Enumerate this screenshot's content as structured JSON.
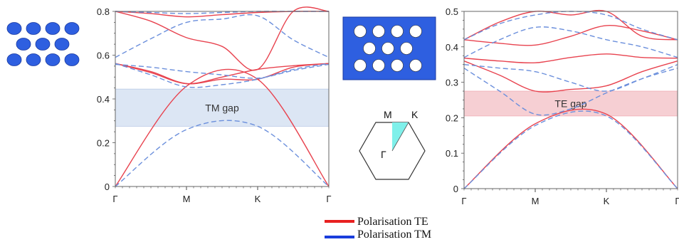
{
  "chart_data": [
    {
      "type": "line",
      "name": "TM gap band diagram",
      "x_ticks": [
        "Γ",
        "M",
        "K",
        "Γ"
      ],
      "y_ticks": [
        "0",
        "0.2",
        "0.4",
        "0.6",
        "0.8"
      ],
      "ylim": [
        0,
        0.8
      ],
      "grid": false,
      "gap": {
        "label": "TM gap",
        "from": 0.275,
        "to": 0.445,
        "color": "#dce6f4"
      },
      "x_knots": [
        0,
        1,
        2,
        3
      ],
      "series": [
        {
          "pol": "TE",
          "style": "solid",
          "color": "#e8434f",
          "points": [
            [
              0,
              0
            ],
            [
              1,
              0.458
            ],
            [
              2,
              0.49
            ],
            [
              3,
              0
            ]
          ]
        },
        {
          "pol": "TE",
          "style": "solid",
          "color": "#e8434f",
          "points": [
            [
              0,
              0.562
            ],
            [
              0.5,
              0.525
            ],
            [
              1,
              0.47
            ],
            [
              1.5,
              0.49
            ],
            [
              2,
              0.49
            ],
            [
              2.5,
              0.545
            ],
            [
              3,
              0.562
            ]
          ]
        },
        {
          "pol": "TE",
          "style": "solid",
          "color": "#e8434f",
          "points": [
            [
              0,
              0.562
            ],
            [
              0.5,
              0.52
            ],
            [
              1,
              0.47
            ],
            [
              1.5,
              0.5
            ],
            [
              2,
              0.535
            ],
            [
              2.5,
              0.552
            ],
            [
              3,
              0.562
            ]
          ]
        },
        {
          "pol": "TE",
          "style": "solid",
          "color": "#e8434f",
          "points": [
            [
              0,
              0.8
            ],
            [
              0.5,
              0.755
            ],
            [
              1,
              0.68
            ],
            [
              1.5,
              0.64
            ],
            [
              2,
              0.535
            ],
            [
              2.5,
              0.8
            ],
            [
              3,
              0.8
            ]
          ]
        },
        {
          "pol": "TE",
          "style": "solid",
          "color": "#e8434f",
          "points": [
            [
              0,
              0.8
            ],
            [
              0.5,
              0.79
            ],
            [
              1,
              0.775
            ],
            [
              1.5,
              0.785
            ],
            [
              2,
              0.795
            ],
            [
              2.5,
              0.8
            ],
            [
              3,
              0.8
            ]
          ]
        },
        {
          "pol": "TM",
          "style": "dashed",
          "color": "#6b8fdc",
          "points": [
            [
              0,
              0
            ],
            [
              1,
              0.26
            ],
            [
              2,
              0.275
            ],
            [
              3,
              0
            ]
          ]
        },
        {
          "pol": "TM",
          "style": "dashed",
          "color": "#6b8fdc",
          "points": [
            [
              0,
              0.562
            ],
            [
              0.5,
              0.51
            ],
            [
              1,
              0.455
            ],
            [
              1.5,
              0.465
            ],
            [
              2,
              0.49
            ],
            [
              2.5,
              0.535
            ],
            [
              3,
              0.562
            ]
          ]
        },
        {
          "pol": "TM",
          "style": "dashed",
          "color": "#6b8fdc",
          "points": [
            [
              0,
              0.558
            ],
            [
              0.5,
              0.545
            ],
            [
              1,
              0.525
            ],
            [
              1.5,
              0.51
            ],
            [
              2,
              0.495
            ],
            [
              2.5,
              0.53
            ],
            [
              3,
              0.558
            ]
          ]
        },
        {
          "pol": "TM",
          "style": "dashed",
          "color": "#6b8fdc",
          "points": [
            [
              0,
              0.59
            ],
            [
              0.5,
              0.675
            ],
            [
              1,
              0.75
            ],
            [
              1.5,
              0.765
            ],
            [
              2,
              0.78
            ],
            [
              2.5,
              0.67
            ],
            [
              3,
              0.59
            ]
          ]
        },
        {
          "pol": "TM",
          "style": "dashed",
          "color": "#6b8fdc",
          "points": [
            [
              0,
              0.8
            ],
            [
              0.5,
              0.795
            ],
            [
              1,
              0.79
            ],
            [
              1.5,
              0.795
            ],
            [
              2,
              0.8
            ],
            [
              2.5,
              0.8
            ],
            [
              3,
              0.8
            ]
          ]
        }
      ]
    },
    {
      "type": "line",
      "name": "TE gap band diagram",
      "x_ticks": [
        "Γ",
        "M",
        "K",
        "Γ"
      ],
      "y_ticks": [
        "0",
        "0.1",
        "0.2",
        "0.3",
        "0.4",
        "0.5"
      ],
      "ylim": [
        0,
        0.5
      ],
      "grid": false,
      "gap": {
        "label": "TE gap",
        "from": 0.205,
        "to": 0.275,
        "color": "#f6cfd3"
      },
      "x_knots": [
        0,
        1,
        2,
        3
      ],
      "series": [
        {
          "pol": "TE",
          "style": "solid",
          "color": "#e8434f",
          "points": [
            [
              0,
              0
            ],
            [
              1,
              0.183
            ],
            [
              2,
              0.21
            ],
            [
              3,
              0
            ]
          ]
        },
        {
          "pol": "TE",
          "style": "solid",
          "color": "#e8434f",
          "points": [
            [
              0,
              0.36
            ],
            [
              0.5,
              0.32
            ],
            [
              1,
              0.275
            ],
            [
              1.5,
              0.28
            ],
            [
              2,
              0.29
            ],
            [
              2.5,
              0.33
            ],
            [
              3,
              0.36
            ]
          ]
        },
        {
          "pol": "TE",
          "style": "solid",
          "color": "#e8434f",
          "points": [
            [
              0,
              0.368
            ],
            [
              0.5,
              0.36
            ],
            [
              1,
              0.355
            ],
            [
              1.5,
              0.37
            ],
            [
              2,
              0.38
            ],
            [
              2.5,
              0.37
            ],
            [
              3,
              0.368
            ]
          ]
        },
        {
          "pol": "TE",
          "style": "solid",
          "color": "#e8434f",
          "points": [
            [
              0,
              0.42
            ],
            [
              0.5,
              0.41
            ],
            [
              1,
              0.405
            ],
            [
              1.5,
              0.43
            ],
            [
              2,
              0.46
            ],
            [
              2.5,
              0.445
            ],
            [
              3,
              0.42
            ]
          ]
        },
        {
          "pol": "TE",
          "style": "solid",
          "color": "#e8434f",
          "points": [
            [
              0,
              0.42
            ],
            [
              0.5,
              0.47
            ],
            [
              1,
              0.5
            ],
            [
              1.5,
              0.49
            ],
            [
              2,
              0.5
            ],
            [
              2.5,
              0.43
            ],
            [
              3,
              0.42
            ]
          ]
        },
        {
          "pol": "TM",
          "style": "dashed",
          "color": "#6b8fdc",
          "points": [
            [
              0,
              0
            ],
            [
              1,
              0.178
            ],
            [
              2,
              0.205
            ],
            [
              3,
              0
            ]
          ]
        },
        {
          "pol": "TM",
          "style": "dashed",
          "color": "#6b8fdc",
          "points": [
            [
              0,
              0.34
            ],
            [
              0.5,
              0.275
            ],
            [
              1,
              0.21
            ],
            [
              1.5,
              0.225
            ],
            [
              2,
              0.27
            ],
            [
              2.5,
              0.31
            ],
            [
              3,
              0.34
            ]
          ]
        },
        {
          "pol": "TM",
          "style": "dashed",
          "color": "#6b8fdc",
          "points": [
            [
              0,
              0.35
            ],
            [
              0.5,
              0.34
            ],
            [
              1,
              0.33
            ],
            [
              1.5,
              0.3
            ],
            [
              2,
              0.275
            ],
            [
              2.5,
              0.31
            ],
            [
              3,
              0.35
            ]
          ]
        },
        {
          "pol": "TM",
          "style": "dashed",
          "color": "#6b8fdc",
          "points": [
            [
              0,
              0.37
            ],
            [
              0.5,
              0.42
            ],
            [
              1,
              0.455
            ],
            [
              1.5,
              0.445
            ],
            [
              2,
              0.42
            ],
            [
              2.5,
              0.4
            ],
            [
              3,
              0.37
            ]
          ]
        },
        {
          "pol": "TM",
          "style": "dashed",
          "color": "#6b8fdc",
          "points": [
            [
              0,
              0.42
            ],
            [
              0.5,
              0.465
            ],
            [
              1,
              0.49
            ],
            [
              1.5,
              0.5
            ],
            [
              2,
              0.49
            ],
            [
              2.5,
              0.45
            ],
            [
              3,
              0.42
            ]
          ]
        }
      ]
    }
  ],
  "brillouin_zone": {
    "labels": [
      "M",
      "K",
      "Γ"
    ],
    "wedge_color": "#7ff0ea"
  },
  "lattice": {
    "rod_color": "#2e5fe0",
    "slab_color": "#2e5fe0",
    "hole_color": "#ffffff"
  },
  "legend": [
    {
      "label": "Polarisation TE",
      "color": "#e82020"
    },
    {
      "label": "Polarisation TM",
      "color": "#1a3ddc"
    }
  ]
}
